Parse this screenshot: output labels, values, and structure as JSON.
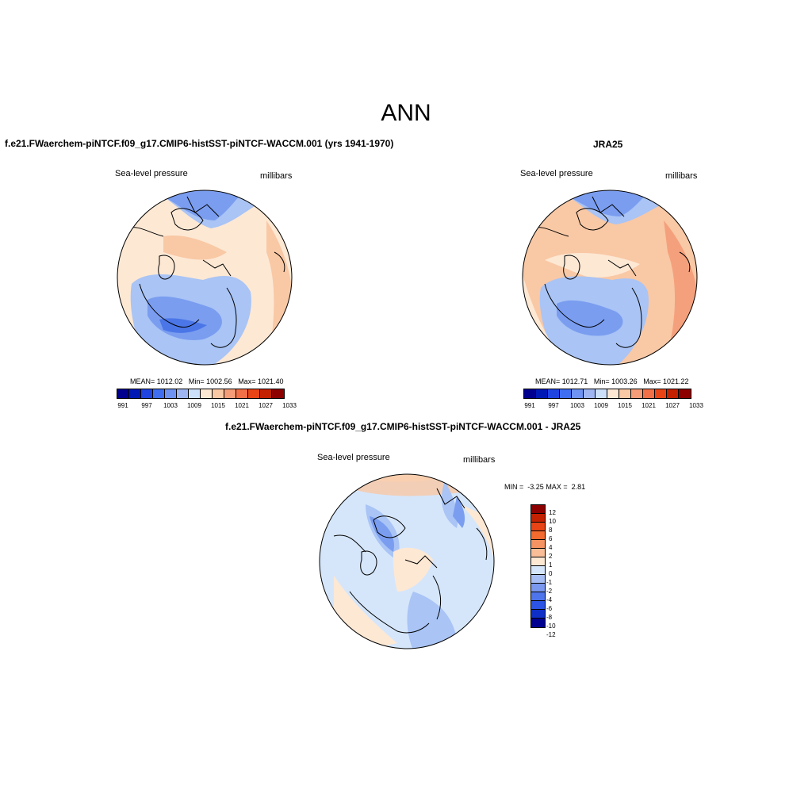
{
  "title": "ANN",
  "panels": {
    "model": {
      "title": "f.e21.FWaerchem-piNTCF.f09_g17.CMIP6-histSST-piNTCF-WACCM.001 (yrs 1941-1970)",
      "variable": "Sea-level pressure",
      "units": "millibars",
      "stats": {
        "mean_label": "MEAN=",
        "mean": "1012.02",
        "min_label": "Min=",
        "min": "1002.56",
        "max_label": "Max=",
        "max": "1021.40"
      }
    },
    "obs": {
      "title": "JRA25",
      "variable": "Sea-level pressure",
      "units": "millibars",
      "stats": {
        "mean_label": "MEAN=",
        "mean": "1012.71",
        "min_label": "Min=",
        "min": "1003.26",
        "max_label": "Max=",
        "max": "1021.22"
      }
    },
    "diff": {
      "title": "f.e21.FWaerchem-piNTCF.f09_g17.CMIP6-histSST-piNTCF-WACCM.001 - JRA25",
      "variable": "Sea-level pressure",
      "units": "millibars",
      "stats": {
        "min_label": "MIN =",
        "min": "-3.25",
        "max_label": "MAX =",
        "max": "2.81"
      }
    }
  },
  "colorbar_abs": {
    "colors": [
      "#00008f",
      "#0019b4",
      "#1f44e0",
      "#3f6ff0",
      "#6f93f2",
      "#9fb6f3",
      "#cde0fa",
      "#fde8d4",
      "#f9c8a5",
      "#f59d79",
      "#f27048",
      "#e84416",
      "#c42100",
      "#8c0000"
    ],
    "tick_labels": [
      "991",
      "997",
      "1003",
      "1009",
      "1015",
      "1021",
      "1027",
      "1033"
    ]
  },
  "colorbar_diff": {
    "colors": [
      "#8c0000",
      "#c42100",
      "#e84416",
      "#f26a2e",
      "#f59462",
      "#f9be98",
      "#fde8d4",
      "#d5e6fb",
      "#a7bef4",
      "#7a98f0",
      "#4f75ec",
      "#2b54e6",
      "#0f30c8",
      "#000090"
    ],
    "tick_labels": [
      "12",
      "10",
      "8",
      "6",
      "4",
      "2",
      "1",
      "0",
      "-1",
      "-2",
      "-4",
      "-6",
      "-8",
      "-10",
      "-12"
    ]
  },
  "map_colors": {
    "deep_blue": "#4a76e8",
    "mid_blue": "#7a9df0",
    "light_blue": "#a9c4f5",
    "pale_blue": "#d5e6fb",
    "cream": "#fde8d4",
    "peach": "#f9c8a5",
    "salmon": "#f5a07c"
  }
}
